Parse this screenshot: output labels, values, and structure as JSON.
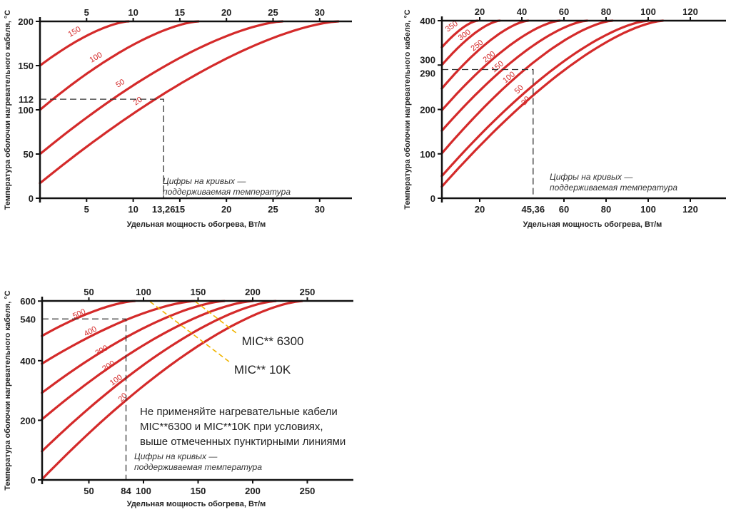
{
  "colors": {
    "curve": "#d42a2a",
    "axis": "#111111",
    "guide": "#333333",
    "limit": "#f0b400"
  },
  "chart_data": [
    {
      "type": "line",
      "xlabel": "Удельная мощность обогрева, Вт/м",
      "ylabel": "Температура оболочки нагревательного кабеля, °С",
      "xticks": [
        5,
        10,
        15,
        20,
        25,
        30
      ],
      "yticks": [
        0,
        50,
        100,
        150,
        200
      ],
      "xlim": [
        0,
        33.5
      ],
      "ylim": [
        0,
        200
      ],
      "x_start": 0,
      "note": [
        "Цифры на кривых —",
        "поддерживаемая температура"
      ],
      "guide": {
        "x": 13.26,
        "y": 112,
        "x_label": "13,26",
        "y_label": "112"
      },
      "series": [
        {
          "name": "150",
          "start_y": 150,
          "end_x": 9.5
        },
        {
          "name": "100",
          "start_y": 100,
          "end_x": 17
        },
        {
          "name": "50",
          "start_y": 50,
          "end_x": 26
        },
        {
          "name": "20",
          "start_y": 17,
          "end_x": 32
        }
      ]
    },
    {
      "type": "line",
      "xlabel": "Удельная мощность обогрева, Вт/м",
      "ylabel": "Температура оболочки нагревательного кабеля, °С",
      "xticks": [
        20,
        40,
        60,
        80,
        100,
        120
      ],
      "bottom_xticks": [
        20,
        60,
        80,
        100,
        120
      ],
      "yticks": [
        0,
        100,
        200,
        300,
        400
      ],
      "xlim": [
        2,
        137
      ],
      "ylim": [
        0,
        400
      ],
      "x_start": 2,
      "note": [
        "Цифры на кривых —",
        "поддерживаемая температура"
      ],
      "guide": {
        "x": 45.36,
        "y": 290,
        "x_label": "45,36",
        "y_label": "290"
      },
      "series": [
        {
          "name": "350",
          "start_y": 340,
          "end_x": 19
        },
        {
          "name": "300",
          "start_y": 300,
          "end_x": 29.5
        },
        {
          "name": "250",
          "start_y": 247,
          "end_x": 43
        },
        {
          "name": "200",
          "start_y": 198,
          "end_x": 58
        },
        {
          "name": "150",
          "start_y": 152,
          "end_x": 71
        },
        {
          "name": "100",
          "start_y": 101,
          "end_x": 83
        },
        {
          "name": "50",
          "start_y": 50,
          "end_x": 100
        },
        {
          "name": "20",
          "start_y": 26,
          "end_x": 107
        }
      ]
    },
    {
      "type": "line",
      "xlabel": "Удельная мощность обогрева, Вт/м",
      "ylabel": "Температура оболочки нагревательного кабеля, °С",
      "xticks": [
        50,
        100,
        150,
        200,
        250
      ],
      "yticks": [
        0,
        200,
        400,
        600
      ],
      "xlim": [
        7,
        292
      ],
      "ylim": [
        0,
        600
      ],
      "x_start": 7,
      "note": [
        "Цифры на кривых —",
        "поддерживаемая температура"
      ],
      "guide": {
        "x": 84,
        "y": 540,
        "x_label": "84",
        "y_label": "540"
      },
      "series": [
        {
          "name": "500",
          "start_y": 483,
          "end_x": 92
        },
        {
          "name": "400",
          "start_y": 390,
          "end_x": 147
        },
        {
          "name": "300",
          "start_y": 292,
          "end_x": 174
        },
        {
          "name": "200",
          "start_y": 203,
          "end_x": 200
        },
        {
          "name": "100",
          "start_y": 96,
          "end_x": 221
        },
        {
          "name": "20",
          "start_y": 2,
          "end_x": 245
        }
      ],
      "limit_lines": [
        {
          "name": "MIC** 6300",
          "from": [
            147,
            600
          ],
          "to": [
            186,
            490
          ]
        },
        {
          "name": "MIC** 10K",
          "from": [
            106,
            598
          ],
          "to": [
            179,
            395
          ]
        }
      ],
      "warning": [
        "Не применяйте нагревательные кабели",
        "MIC**6300 и MIC**10K при условиях,",
        "выше отмеченных пунктирными линиями"
      ]
    }
  ]
}
